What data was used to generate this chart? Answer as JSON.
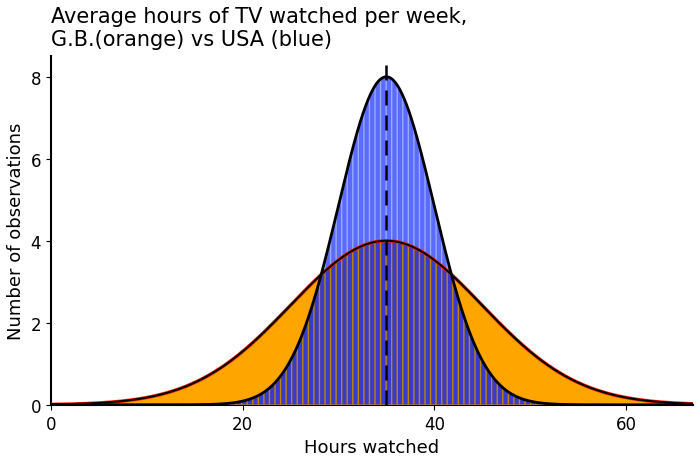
{
  "title": "Average hours of TV watched per week,\nG.B.(orange) vs USA (blue)",
  "xlabel": "Hours watched",
  "ylabel": "Number of observations",
  "xlim": [
    0,
    67
  ],
  "ylim": [
    -0.05,
    8.5
  ],
  "xticks": [
    0,
    20,
    40,
    60
  ],
  "yticks": [
    0,
    2,
    4,
    6,
    8
  ],
  "mean_usa": 35,
  "std_usa": 5,
  "peak_usa": 8,
  "mean_gb": 35,
  "std_gb": 10,
  "peak_gb": 4,
  "dashed_line_x": 35,
  "color_usa_fill": "#5B6BFF",
  "color_usa_hatch_edge": "#99AAFF",
  "color_gb_fill": "#FFA500",
  "color_gb_outline": "#FF2200",
  "color_overlap_fill": "#3A3ACC",
  "color_overlap_hatch": "#BB8800",
  "color_curve": "#000000",
  "title_fontsize": 15,
  "label_fontsize": 13,
  "tick_fontsize": 12,
  "figsize": [
    7.0,
    4.64
  ],
  "dpi": 100
}
